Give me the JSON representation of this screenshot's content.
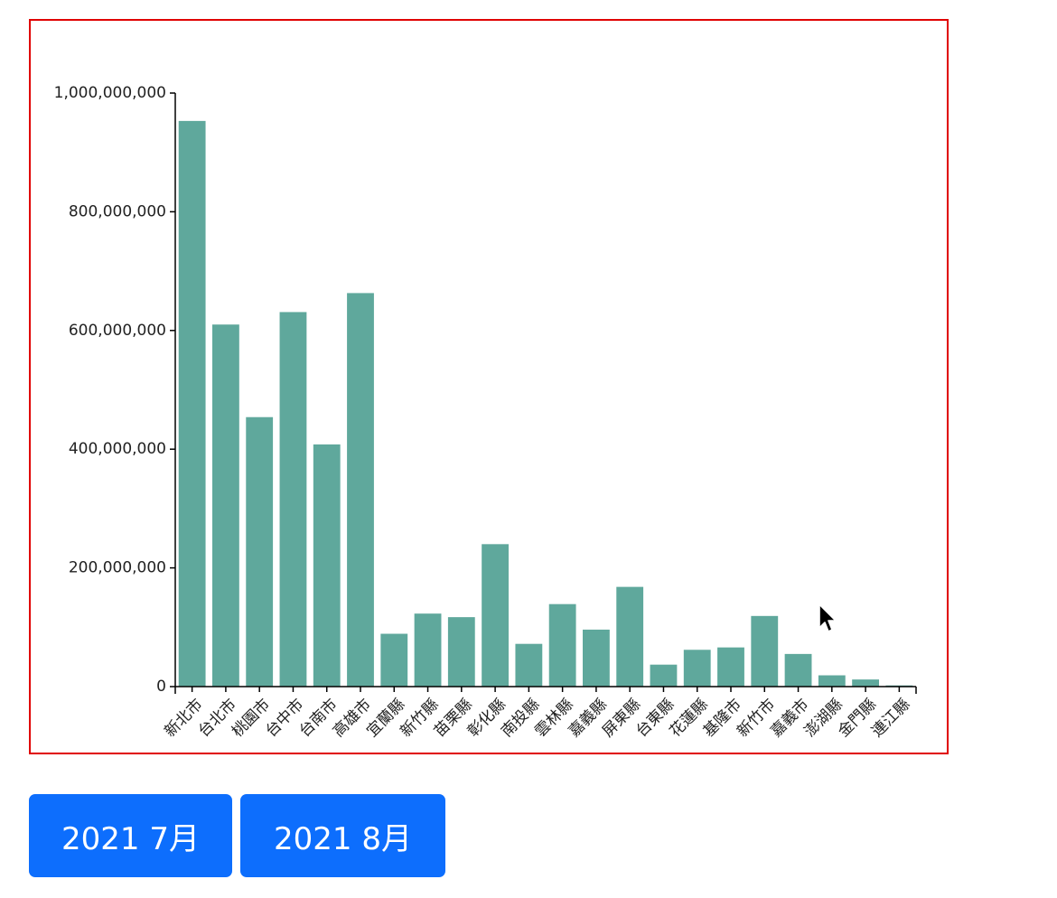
{
  "chart_data": {
    "type": "bar",
    "title": "",
    "xlabel": "",
    "ylabel": "",
    "ylim": [
      0,
      1000000000
    ],
    "yticks": [
      0,
      200000000,
      400000000,
      600000000,
      800000000,
      1000000000
    ],
    "ytick_labels": [
      "0",
      "200,000,000",
      "400,000,000",
      "600,000,000",
      "800,000,000",
      "1,000,000,000"
    ],
    "categories": [
      "新北市",
      "台北市",
      "桃園市",
      "台中市",
      "台南市",
      "高雄市",
      "宜蘭縣",
      "新竹縣",
      "苗栗縣",
      "彰化縣",
      "南投縣",
      "雲林縣",
      "嘉義縣",
      "屏東縣",
      "台東縣",
      "花蓮縣",
      "基隆市",
      "新竹市",
      "嘉義市",
      "澎湖縣",
      "金門縣",
      "連江縣"
    ],
    "values": [
      953000000,
      610000000,
      454000000,
      631000000,
      408000000,
      663000000,
      89000000,
      123000000,
      117000000,
      240000000,
      72000000,
      139000000,
      96000000,
      168000000,
      37000000,
      62000000,
      66000000,
      119000000,
      55000000,
      19000000,
      12000000,
      2000000
    ],
    "bar_color": "#5fa89c",
    "grid": false,
    "legend": "none"
  },
  "buttons": {
    "july_label": "2021 7月",
    "august_label": "2021 8月",
    "color": "#0d6efd"
  },
  "frame_color": "#e00000",
  "icons": {
    "cursor": "mouse-pointer-icon"
  }
}
